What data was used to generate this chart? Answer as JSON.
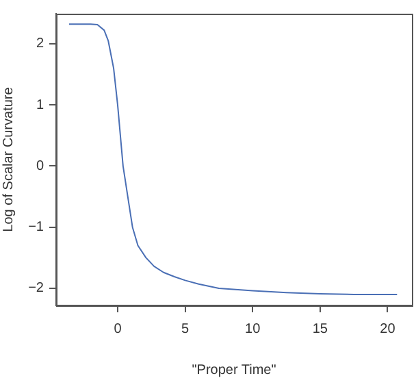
{
  "chart_data": {
    "type": "line",
    "xlabel": "\"Proper Time\"",
    "ylabel": "Log of Scalar Curvature",
    "x": [
      -3.6,
      -2,
      -1.5,
      -1.0,
      -0.7,
      -0.3,
      0,
      0.4,
      0.75,
      1.1,
      1.5,
      2.1,
      2.7,
      3.4,
      4.2,
      5,
      6,
      7.5,
      10,
      12.5,
      15,
      17.5,
      20.7
    ],
    "series": [
      {
        "color": "#4a6fb5",
        "values": [
          2.32,
          2.32,
          2.31,
          2.22,
          2.05,
          1.6,
          1.0,
          0.0,
          -0.5,
          -1.0,
          -1.3,
          -1.5,
          -1.64,
          -1.74,
          -1.81,
          -1.87,
          -1.93,
          -2.0,
          -2.04,
          -2.07,
          -2.09,
          -2.1,
          -2.1
        ]
      }
    ],
    "xlim": [
      -4.56,
      21.8
    ],
    "xticks": [
      0,
      5,
      10,
      15,
      20
    ],
    "ylim": [
      -2.28,
      2.49
    ],
    "yticks": [
      -2,
      -1,
      0,
      1,
      2
    ],
    "grid": false,
    "legend": false,
    "marker": "none",
    "line_style": "solid"
  }
}
